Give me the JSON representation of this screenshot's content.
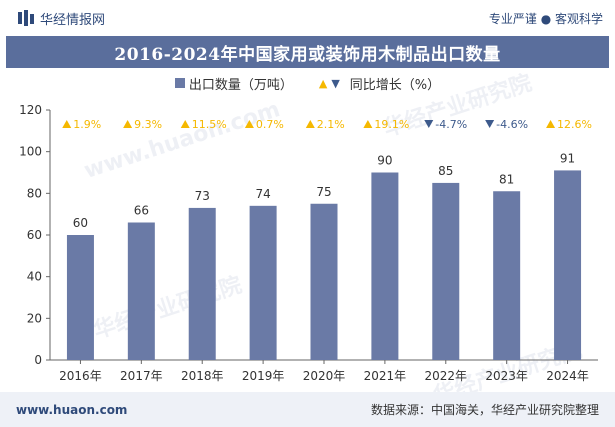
{
  "header": {
    "brand": "华经情报网",
    "tagline": "专业严谨 ● 客观科学"
  },
  "chart_data": {
    "type": "bar",
    "title": "2016-2024年中国家用或装饰用木制品出口数量",
    "categories": [
      "2016年",
      "2017年",
      "2018年",
      "2019年",
      "2020年",
      "2021年",
      "2022年",
      "2023年",
      "2024年"
    ],
    "series": [
      {
        "name": "出口数量（万吨）",
        "values": [
          60,
          66,
          73,
          74,
          75,
          90,
          85,
          81,
          91
        ]
      },
      {
        "name": "同比增长（%）",
        "values": [
          1.9,
          9.3,
          11.5,
          0.7,
          2.1,
          19.1,
          -4.7,
          -4.6,
          12.6
        ]
      }
    ],
    "growth_labels": [
      "1.9%",
      "9.3%",
      "11.5%",
      "0.7%",
      "2.1%",
      "19.1%",
      "-4.7%",
      "-4.6%",
      "12.6%"
    ],
    "ylim": [
      0,
      120
    ],
    "yticks": [
      0,
      20,
      40,
      60,
      80,
      100,
      120
    ],
    "grid": false,
    "legend_position": "top-center",
    "colors": {
      "bar": "#6a7aa6",
      "up": "#f5b800",
      "down": "#3d5a8c",
      "title_bg": "#5a6e9c"
    }
  },
  "footer": {
    "site": "www.huaon.com",
    "source": "数据来源：中国海关，华经产业研究院整理"
  },
  "watermarks": [
    "华经产业研究院",
    "www.huaon.com",
    "华经产业研究院",
    "华经产业研究院"
  ]
}
